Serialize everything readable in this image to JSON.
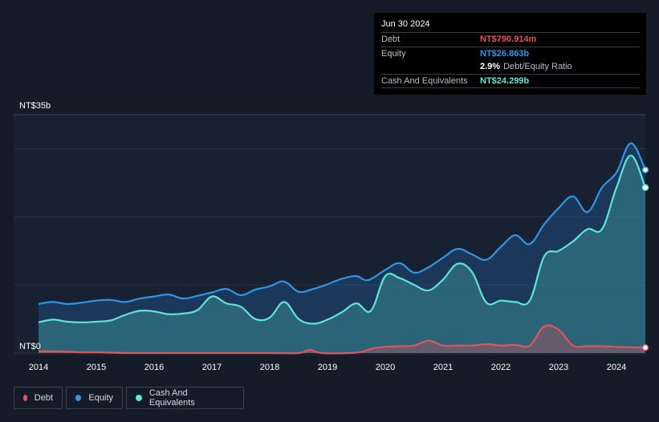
{
  "tooltip": {
    "date": "Jun 30 2024",
    "rows": [
      {
        "label": "Debt",
        "value": "NT$790.914m",
        "color": "#e0555b"
      },
      {
        "label": "Equity",
        "value": "NT$26.863b",
        "color": "#2f95e5"
      },
      {
        "label": "",
        "value": "2.9%",
        "sub": "Debt/Equity Ratio",
        "color": "#ffffff"
      },
      {
        "label": "Cash And Equivalents",
        "value": "NT$24.299b",
        "color": "#5ee5d6"
      }
    ]
  },
  "legend": [
    {
      "label": "Debt",
      "color": "#e0555b"
    },
    {
      "label": "Equity",
      "color": "#2f95e5"
    },
    {
      "label": "Cash And Equivalents",
      "color": "#5ee5d6"
    }
  ],
  "chart_data": {
    "type": "area",
    "ylabel_top": "NT$35b",
    "ylabel_bottom": "NT$0",
    "ylim": [
      0,
      35
    ],
    "grid": true,
    "x_ticks": [
      2014,
      2015,
      2016,
      2017,
      2018,
      2019,
      2020,
      2021,
      2022,
      2023,
      2024
    ],
    "series": [
      {
        "name": "Equity",
        "color": "#2f95e5",
        "unit": "NT$b",
        "points": [
          [
            2014.0,
            7.2
          ],
          [
            2014.25,
            7.5
          ],
          [
            2014.5,
            7.2
          ],
          [
            2014.75,
            7.4
          ],
          [
            2015.0,
            7.7
          ],
          [
            2015.25,
            7.8
          ],
          [
            2015.5,
            7.5
          ],
          [
            2015.75,
            8.0
          ],
          [
            2016.0,
            8.3
          ],
          [
            2016.25,
            8.6
          ],
          [
            2016.5,
            8.0
          ],
          [
            2016.75,
            8.4
          ],
          [
            2017.0,
            8.9
          ],
          [
            2017.25,
            9.4
          ],
          [
            2017.5,
            8.5
          ],
          [
            2017.75,
            9.3
          ],
          [
            2018.0,
            9.8
          ],
          [
            2018.25,
            10.5
          ],
          [
            2018.5,
            9.0
          ],
          [
            2018.75,
            9.4
          ],
          [
            2019.0,
            10.1
          ],
          [
            2019.25,
            10.9
          ],
          [
            2019.5,
            11.3
          ],
          [
            2019.7,
            10.7
          ],
          [
            2020.0,
            12.2
          ],
          [
            2020.25,
            13.2
          ],
          [
            2020.5,
            11.8
          ],
          [
            2020.75,
            12.6
          ],
          [
            2021.0,
            14.0
          ],
          [
            2021.25,
            15.3
          ],
          [
            2021.5,
            14.5
          ],
          [
            2021.75,
            13.7
          ],
          [
            2022.0,
            15.6
          ],
          [
            2022.25,
            17.3
          ],
          [
            2022.5,
            16.0
          ],
          [
            2022.75,
            18.9
          ],
          [
            2023.0,
            21.3
          ],
          [
            2023.25,
            23.0
          ],
          [
            2023.5,
            20.7
          ],
          [
            2023.75,
            24.3
          ],
          [
            2024.0,
            26.5
          ],
          [
            2024.25,
            30.8
          ],
          [
            2024.5,
            26.9
          ]
        ]
      },
      {
        "name": "Cash And Equivalents",
        "color": "#5ee5d6",
        "unit": "NT$b",
        "points": [
          [
            2014.0,
            4.5
          ],
          [
            2014.25,
            4.9
          ],
          [
            2014.5,
            4.6
          ],
          [
            2014.75,
            4.5
          ],
          [
            2015.0,
            4.6
          ],
          [
            2015.25,
            4.8
          ],
          [
            2015.5,
            5.6
          ],
          [
            2015.75,
            6.2
          ],
          [
            2016.0,
            6.1
          ],
          [
            2016.25,
            5.7
          ],
          [
            2016.5,
            5.8
          ],
          [
            2016.75,
            6.3
          ],
          [
            2017.0,
            8.3
          ],
          [
            2017.25,
            7.3
          ],
          [
            2017.5,
            6.8
          ],
          [
            2017.75,
            5.0
          ],
          [
            2018.0,
            5.2
          ],
          [
            2018.25,
            7.5
          ],
          [
            2018.5,
            5.0
          ],
          [
            2018.75,
            4.3
          ],
          [
            2019.0,
            4.9
          ],
          [
            2019.25,
            6.0
          ],
          [
            2019.5,
            7.3
          ],
          [
            2019.75,
            6.2
          ],
          [
            2020.0,
            11.3
          ],
          [
            2020.25,
            11.0
          ],
          [
            2020.5,
            10.0
          ],
          [
            2020.75,
            9.2
          ],
          [
            2021.0,
            10.8
          ],
          [
            2021.25,
            13.1
          ],
          [
            2021.5,
            11.9
          ],
          [
            2021.75,
            7.4
          ],
          [
            2022.0,
            7.7
          ],
          [
            2022.25,
            7.5
          ],
          [
            2022.5,
            7.7
          ],
          [
            2022.75,
            14.2
          ],
          [
            2023.0,
            15.0
          ],
          [
            2023.25,
            16.4
          ],
          [
            2023.5,
            18.2
          ],
          [
            2023.75,
            18.2
          ],
          [
            2024.0,
            24.3
          ],
          [
            2024.25,
            29.0
          ],
          [
            2024.5,
            24.3
          ]
        ]
      },
      {
        "name": "Debt",
        "color": "#e0555b",
        "unit": "NT$b",
        "points": [
          [
            2014.0,
            0.25
          ],
          [
            2014.25,
            0.25
          ],
          [
            2014.5,
            0.2
          ],
          [
            2014.75,
            0.1
          ],
          [
            2015.0,
            0.1
          ],
          [
            2015.25,
            0.05
          ],
          [
            2015.5,
            0.0
          ],
          [
            2016.0,
            0.0
          ],
          [
            2017.0,
            0.0
          ],
          [
            2018.0,
            0.0
          ],
          [
            2018.5,
            0.0
          ],
          [
            2018.7,
            0.45
          ],
          [
            2018.9,
            0.0
          ],
          [
            2019.4,
            0.0
          ],
          [
            2019.6,
            0.2
          ],
          [
            2019.8,
            0.7
          ],
          [
            2020.0,
            0.9
          ],
          [
            2020.25,
            1.0
          ],
          [
            2020.5,
            1.1
          ],
          [
            2020.75,
            1.8
          ],
          [
            2021.0,
            1.1
          ],
          [
            2021.25,
            1.1
          ],
          [
            2021.5,
            1.1
          ],
          [
            2021.75,
            1.3
          ],
          [
            2022.0,
            1.1
          ],
          [
            2022.25,
            1.2
          ],
          [
            2022.5,
            1.1
          ],
          [
            2022.75,
            3.9
          ],
          [
            2023.0,
            3.4
          ],
          [
            2023.25,
            1.1
          ],
          [
            2023.5,
            1.0
          ],
          [
            2023.75,
            1.0
          ],
          [
            2024.0,
            0.9
          ],
          [
            2024.25,
            0.85
          ],
          [
            2024.5,
            0.79
          ]
        ]
      }
    ]
  }
}
